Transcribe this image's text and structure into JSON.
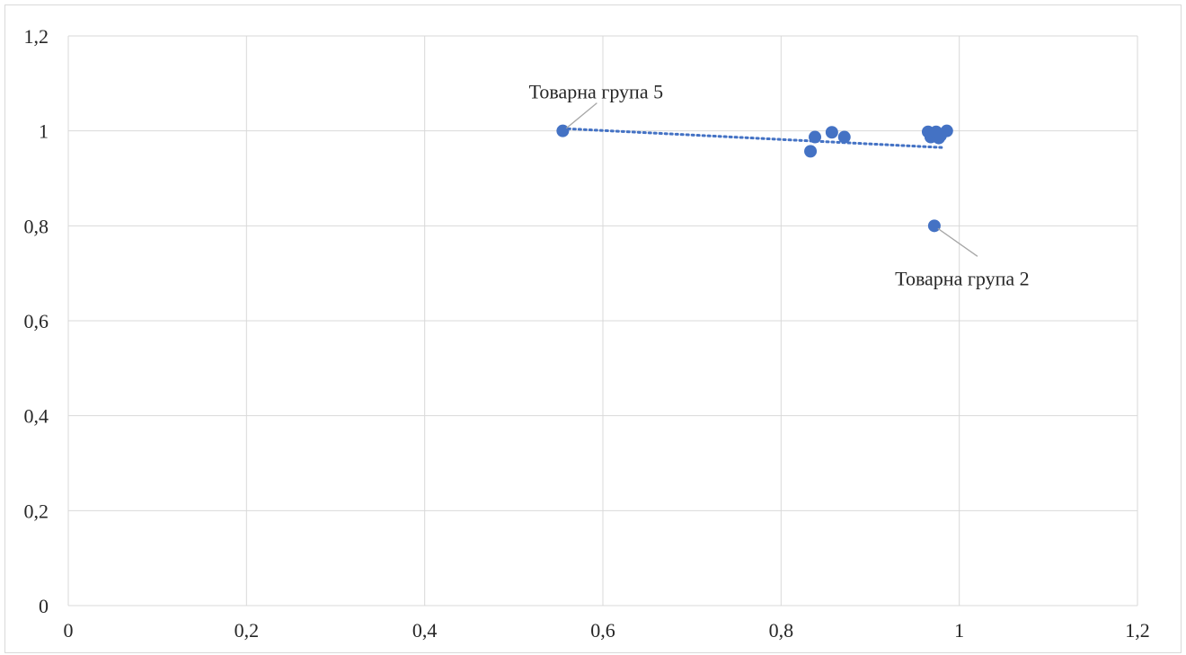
{
  "chart_data": {
    "type": "scatter",
    "title": "",
    "xlabel": "",
    "ylabel": "",
    "xlim": [
      0,
      1.2
    ],
    "ylim": [
      0,
      1.2
    ],
    "x_ticks": [
      "0",
      "0,2",
      "0,4",
      "0,6",
      "0,8",
      "1",
      "1,2"
    ],
    "y_ticks": [
      "0",
      "0,2",
      "0,4",
      "0,6",
      "0,8",
      "1",
      "1,2"
    ],
    "x_tick_values": [
      0,
      0.2,
      0.4,
      0.6,
      0.8,
      1,
      1.2
    ],
    "y_tick_values": [
      0,
      0.2,
      0.4,
      0.6,
      0.8,
      1,
      1.2
    ],
    "grid": true,
    "legend": "none",
    "marker_color": "#4472C4",
    "trendline": {
      "type": "linear",
      "style": "dotted",
      "color": "#4472C4",
      "x_range": [
        0.555,
        0.98
      ],
      "y_start": 1.005,
      "y_end": 0.965
    },
    "series": [
      {
        "points": [
          {
            "x": 0.555,
            "y": 1.0
          },
          {
            "x": 0.833,
            "y": 0.957
          },
          {
            "x": 0.838,
            "y": 0.987
          },
          {
            "x": 0.857,
            "y": 0.997
          },
          {
            "x": 0.871,
            "y": 0.987
          },
          {
            "x": 0.965,
            "y": 0.998
          },
          {
            "x": 0.968,
            "y": 0.987
          },
          {
            "x": 0.972,
            "y": 0.8
          },
          {
            "x": 0.974,
            "y": 0.998
          },
          {
            "x": 0.977,
            "y": 0.985
          },
          {
            "x": 0.979,
            "y": 0.99
          },
          {
            "x": 0.986,
            "y": 1.0
          }
        ]
      }
    ],
    "annotations": [
      {
        "text": "Товарна група 5",
        "x": 0.555,
        "y": 1.0
      },
      {
        "text": "Товарна група 2",
        "x": 0.972,
        "y": 0.8
      }
    ]
  }
}
